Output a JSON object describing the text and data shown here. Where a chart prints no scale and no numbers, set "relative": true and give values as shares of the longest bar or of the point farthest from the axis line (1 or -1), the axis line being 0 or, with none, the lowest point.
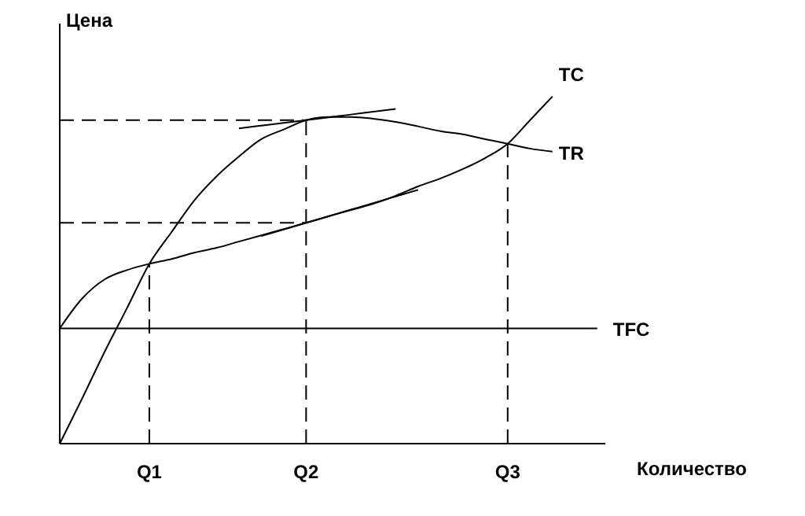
{
  "chart_data": {
    "type": "line",
    "relative": true,
    "ylabel": "Цена",
    "xlabel": "Количество",
    "categories": [
      null,
      null,
      null,
      null,
      "Q1",
      null,
      null,
      null,
      null,
      null,
      null,
      "Q2",
      null,
      null,
      null,
      null,
      null,
      null,
      null,
      null,
      "Q3",
      null,
      null,
      null,
      null
    ],
    "series": [
      {
        "name": "TR",
        "color": "#000000",
        "values": [
          0,
          0.13,
          0.264,
          0.39,
          0.518,
          0.61,
          0.7,
          0.77,
          0.827,
          0.877,
          0.905,
          0.932,
          0.941,
          0.941,
          0.936,
          0.927,
          0.914,
          0.9,
          0.891,
          0.877,
          0.864,
          0.85,
          0.841,
          null,
          null
        ]
      },
      {
        "name": "TC",
        "color": "#000000",
        "values": [
          0.332,
          0.418,
          0.473,
          0.5,
          0.518,
          0.532,
          0.55,
          0.564,
          0.582,
          0.6,
          0.618,
          0.636,
          0.655,
          0.673,
          0.691,
          0.714,
          0.741,
          0.764,
          0.791,
          0.823,
          0.864,
          0.932,
          1,
          null,
          null
        ]
      },
      {
        "name": "TFC",
        "color": "#000000",
        "values": [
          0.332,
          0.332,
          0.332,
          0.332,
          0.332,
          0.332,
          0.332,
          0.332,
          0.332,
          0.332,
          0.332,
          0.332,
          0.332,
          0.332,
          0.332,
          0.332,
          0.332,
          0.332,
          0.332,
          0.332,
          0.332,
          0.332,
          0.332,
          0.332,
          0.332
        ]
      },
      {
        "color": "#000000",
        "values": [
          null,
          null,
          null,
          null,
          null,
          null,
          null,
          null,
          0.908,
          0.916,
          0.924,
          0.932,
          0.94,
          0.948,
          0.956,
          0.964,
          null,
          null,
          null,
          null,
          null,
          null,
          null,
          null,
          null
        ]
      },
      {
        "color": "#000000",
        "values": [
          null,
          null,
          null,
          null,
          null,
          null,
          null,
          null,
          null,
          0.598,
          0.617,
          0.636,
          0.655,
          0.674,
          0.693,
          0.712,
          0.731,
          null,
          null,
          null,
          null,
          null,
          null,
          null,
          null
        ]
      }
    ],
    "ref_lines": [
      {
        "axis": "x",
        "value": "Q1",
        "line_style": "dashed"
      },
      {
        "axis": "x",
        "value": "Q2",
        "line_style": "dashed"
      },
      {
        "axis": "x",
        "value": "Q3",
        "line_style": "dashed"
      },
      {
        "axis": "y",
        "value": 0.932,
        "line_style": "dashed"
      },
      {
        "axis": "y",
        "value": 0.636,
        "line_style": "dashed"
      }
    ]
  }
}
